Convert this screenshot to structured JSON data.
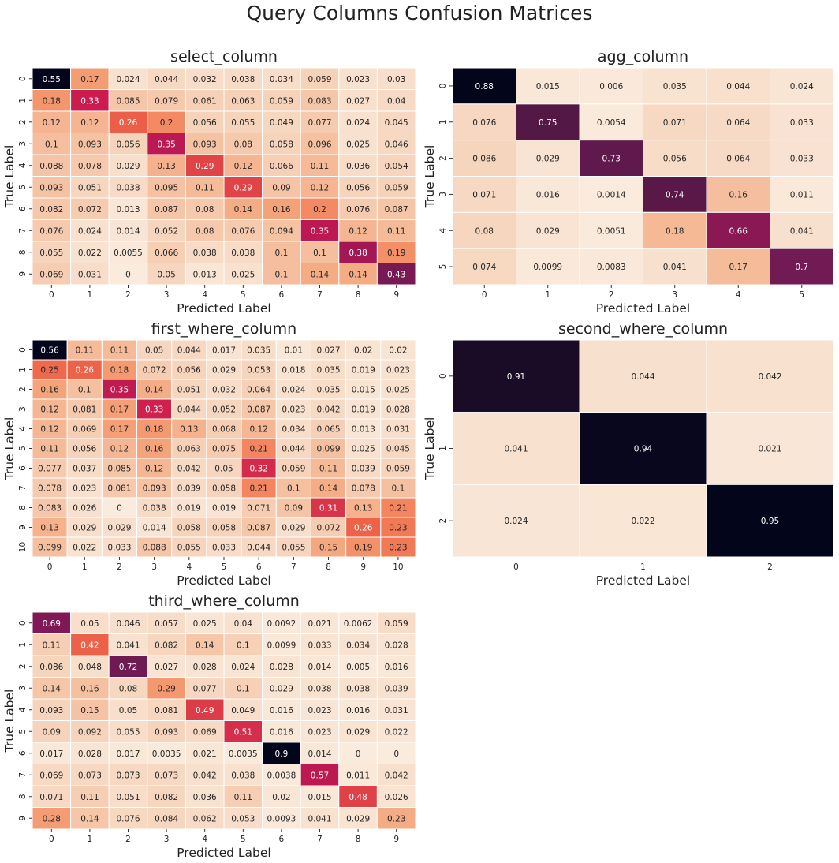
{
  "suptitle": "Query Columns Confusion Matrices",
  "chart_data": [
    {
      "type": "heatmap",
      "title": "select_column",
      "xlabel": "Predicted Label",
      "ylabel": "True Label",
      "x_ticks": [
        "0",
        "1",
        "2",
        "3",
        "4",
        "5",
        "6",
        "7",
        "8",
        "9"
      ],
      "y_ticks": [
        "0",
        "1",
        "2",
        "3",
        "4",
        "5",
        "6",
        "7",
        "8",
        "9"
      ],
      "values": [
        [
          "0.55",
          "0.17",
          "0.024",
          "0.044",
          "0.032",
          "0.038",
          "0.034",
          "0.059",
          "0.023",
          "0.03"
        ],
        [
          "0.18",
          "0.33",
          "0.085",
          "0.079",
          "0.061",
          "0.063",
          "0.059",
          "0.083",
          "0.027",
          "0.04"
        ],
        [
          "0.12",
          "0.12",
          "0.26",
          "0.2",
          "0.056",
          "0.055",
          "0.049",
          "0.077",
          "0.024",
          "0.045"
        ],
        [
          "0.1",
          "0.093",
          "0.056",
          "0.35",
          "0.093",
          "0.08",
          "0.058",
          "0.096",
          "0.025",
          "0.046"
        ],
        [
          "0.088",
          "0.078",
          "0.029",
          "0.13",
          "0.29",
          "0.12",
          "0.066",
          "0.11",
          "0.036",
          "0.054"
        ],
        [
          "0.093",
          "0.051",
          "0.038",
          "0.095",
          "0.11",
          "0.29",
          "0.09",
          "0.12",
          "0.056",
          "0.059"
        ],
        [
          "0.082",
          "0.072",
          "0.013",
          "0.087",
          "0.08",
          "0.14",
          "0.16",
          "0.2",
          "0.076",
          "0.087"
        ],
        [
          "0.076",
          "0.024",
          "0.014",
          "0.052",
          "0.08",
          "0.076",
          "0.094",
          "0.35",
          "0.12",
          "0.11"
        ],
        [
          "0.055",
          "0.022",
          "0.0055",
          "0.066",
          "0.038",
          "0.038",
          "0.1",
          "0.1",
          "0.38",
          "0.19"
        ],
        [
          "0.069",
          "0.031",
          "0",
          "0.05",
          "0.013",
          "0.025",
          "0.1",
          "0.14",
          "0.14",
          "0.43"
        ]
      ],
      "vmin": 0,
      "vmax": 0.55,
      "colormap": "rocket_r",
      "colorbar": false
    },
    {
      "type": "heatmap",
      "title": "agg_column",
      "xlabel": "Predicted Label",
      "ylabel": "True Label",
      "x_ticks": [
        "0",
        "1",
        "2",
        "3",
        "4",
        "5"
      ],
      "y_ticks": [
        "0",
        "1",
        "2",
        "3",
        "4",
        "5"
      ],
      "values": [
        [
          "0.88",
          "0.015",
          "0.006",
          "0.035",
          "0.044",
          "0.024"
        ],
        [
          "0.076",
          "0.75",
          "0.0054",
          "0.071",
          "0.064",
          "0.033"
        ],
        [
          "0.086",
          "0.029",
          "0.73",
          "0.056",
          "0.064",
          "0.033"
        ],
        [
          "0.071",
          "0.016",
          "0.0014",
          "0.74",
          "0.16",
          "0.011"
        ],
        [
          "0.08",
          "0.029",
          "0.0051",
          "0.18",
          "0.66",
          "0.041"
        ],
        [
          "0.074",
          "0.0099",
          "0.0083",
          "0.041",
          "0.17",
          "0.7"
        ]
      ],
      "vmin": 0,
      "vmax": 0.88,
      "colormap": "rocket_r",
      "colorbar": false
    },
    {
      "type": "heatmap",
      "title": "first_where_column",
      "xlabel": "Predicted Label",
      "ylabel": "True Label",
      "x_ticks": [
        "0",
        "1",
        "2",
        "3",
        "4",
        "5",
        "6",
        "7",
        "8",
        "9",
        "10"
      ],
      "y_ticks": [
        "0",
        "1",
        "2",
        "3",
        "4",
        "5",
        "6",
        "7",
        "8",
        "9",
        "10"
      ],
      "values": [
        [
          "0.56",
          "0.11",
          "0.11",
          "0.05",
          "0.044",
          "0.017",
          "0.035",
          "0.01",
          "0.027",
          "0.02",
          "0.02"
        ],
        [
          "0.25",
          "0.26",
          "0.18",
          "0.072",
          "0.056",
          "0.029",
          "0.053",
          "0.018",
          "0.035",
          "0.019",
          "0.023"
        ],
        [
          "0.16",
          "0.1",
          "0.35",
          "0.14",
          "0.051",
          "0.032",
          "0.064",
          "0.024",
          "0.035",
          "0.015",
          "0.025"
        ],
        [
          "0.12",
          "0.081",
          "0.17",
          "0.33",
          "0.044",
          "0.052",
          "0.087",
          "0.023",
          "0.042",
          "0.019",
          "0.028"
        ],
        [
          "0.12",
          "0.069",
          "0.17",
          "0.18",
          "0.13",
          "0.068",
          "0.12",
          "0.034",
          "0.065",
          "0.013",
          "0.031"
        ],
        [
          "0.11",
          "0.056",
          "0.12",
          "0.16",
          "0.063",
          "0.075",
          "0.21",
          "0.044",
          "0.099",
          "0.025",
          "0.045"
        ],
        [
          "0.077",
          "0.037",
          "0.085",
          "0.12",
          "0.042",
          "0.05",
          "0.32",
          "0.059",
          "0.11",
          "0.039",
          "0.059"
        ],
        [
          "0.078",
          "0.023",
          "0.081",
          "0.093",
          "0.039",
          "0.058",
          "0.21",
          "0.1",
          "0.14",
          "0.078",
          "0.1"
        ],
        [
          "0.083",
          "0.026",
          "0",
          "0.038",
          "0.019",
          "0.019",
          "0.071",
          "0.09",
          "0.31",
          "0.13",
          "0.21"
        ],
        [
          "0.13",
          "0.029",
          "0.029",
          "0.014",
          "0.058",
          "0.058",
          "0.087",
          "0.029",
          "0.072",
          "0.26",
          "0.23"
        ],
        [
          "0.099",
          "0.022",
          "0.033",
          "0.088",
          "0.055",
          "0.033",
          "0.044",
          "0.055",
          "0.15",
          "0.19",
          "0.23"
        ]
      ],
      "vmin": 0,
      "vmax": 0.56,
      "colormap": "rocket_r",
      "colorbar": false
    },
    {
      "type": "heatmap",
      "title": "second_where_column",
      "xlabel": "Predicted Label",
      "ylabel": "True Label",
      "x_ticks": [
        "0",
        "1",
        "2"
      ],
      "y_ticks": [
        "0",
        "1",
        "2"
      ],
      "values": [
        [
          "0.91",
          "0.044",
          "0.042"
        ],
        [
          "0.041",
          "0.94",
          "0.021"
        ],
        [
          "0.024",
          "0.022",
          "0.95"
        ]
      ],
      "vmin": 0,
      "vmax": 0.95,
      "colormap": "rocket_r",
      "colorbar": false
    },
    {
      "type": "heatmap",
      "title": "third_where_column",
      "xlabel": "Predicted Label",
      "ylabel": "True Label",
      "x_ticks": [
        "0",
        "1",
        "2",
        "3",
        "4",
        "5",
        "6",
        "7",
        "8",
        "9"
      ],
      "y_ticks": [
        "0",
        "1",
        "2",
        "3",
        "4",
        "5",
        "6",
        "7",
        "8",
        "9"
      ],
      "values": [
        [
          "0.69",
          "0.05",
          "0.046",
          "0.057",
          "0.025",
          "0.04",
          "0.0092",
          "0.021",
          "0.0062",
          "0.059"
        ],
        [
          "0.11",
          "0.42",
          "0.041",
          "0.082",
          "0.14",
          "0.1",
          "0.0099",
          "0.033",
          "0.034",
          "0.028"
        ],
        [
          "0.086",
          "0.048",
          "0.72",
          "0.027",
          "0.028",
          "0.024",
          "0.028",
          "0.014",
          "0.005",
          "0.016"
        ],
        [
          "0.14",
          "0.16",
          "0.08",
          "0.29",
          "0.077",
          "0.1",
          "0.029",
          "0.038",
          "0.038",
          "0.039"
        ],
        [
          "0.093",
          "0.15",
          "0.05",
          "0.081",
          "0.49",
          "0.049",
          "0.016",
          "0.023",
          "0.016",
          "0.031"
        ],
        [
          "0.09",
          "0.092",
          "0.055",
          "0.093",
          "0.069",
          "0.51",
          "0.016",
          "0.023",
          "0.029",
          "0.022"
        ],
        [
          "0.017",
          "0.028",
          "0.017",
          "0.0035",
          "0.021",
          "0.0035",
          "0.9",
          "0.014",
          "0",
          "0"
        ],
        [
          "0.069",
          "0.073",
          "0.073",
          "0.073",
          "0.042",
          "0.038",
          "0.0038",
          "0.57",
          "0.011",
          "0.042"
        ],
        [
          "0.071",
          "0.11",
          "0.051",
          "0.082",
          "0.036",
          "0.11",
          "0.02",
          "0.015",
          "0.48",
          "0.026"
        ],
        [
          "0.28",
          "0.14",
          "0.076",
          "0.084",
          "0.062",
          "0.053",
          "0.0093",
          "0.041",
          "0.029",
          "0.23"
        ]
      ],
      "vmin": 0,
      "vmax": 0.9,
      "colormap": "rocket_r",
      "colorbar": false
    }
  ]
}
